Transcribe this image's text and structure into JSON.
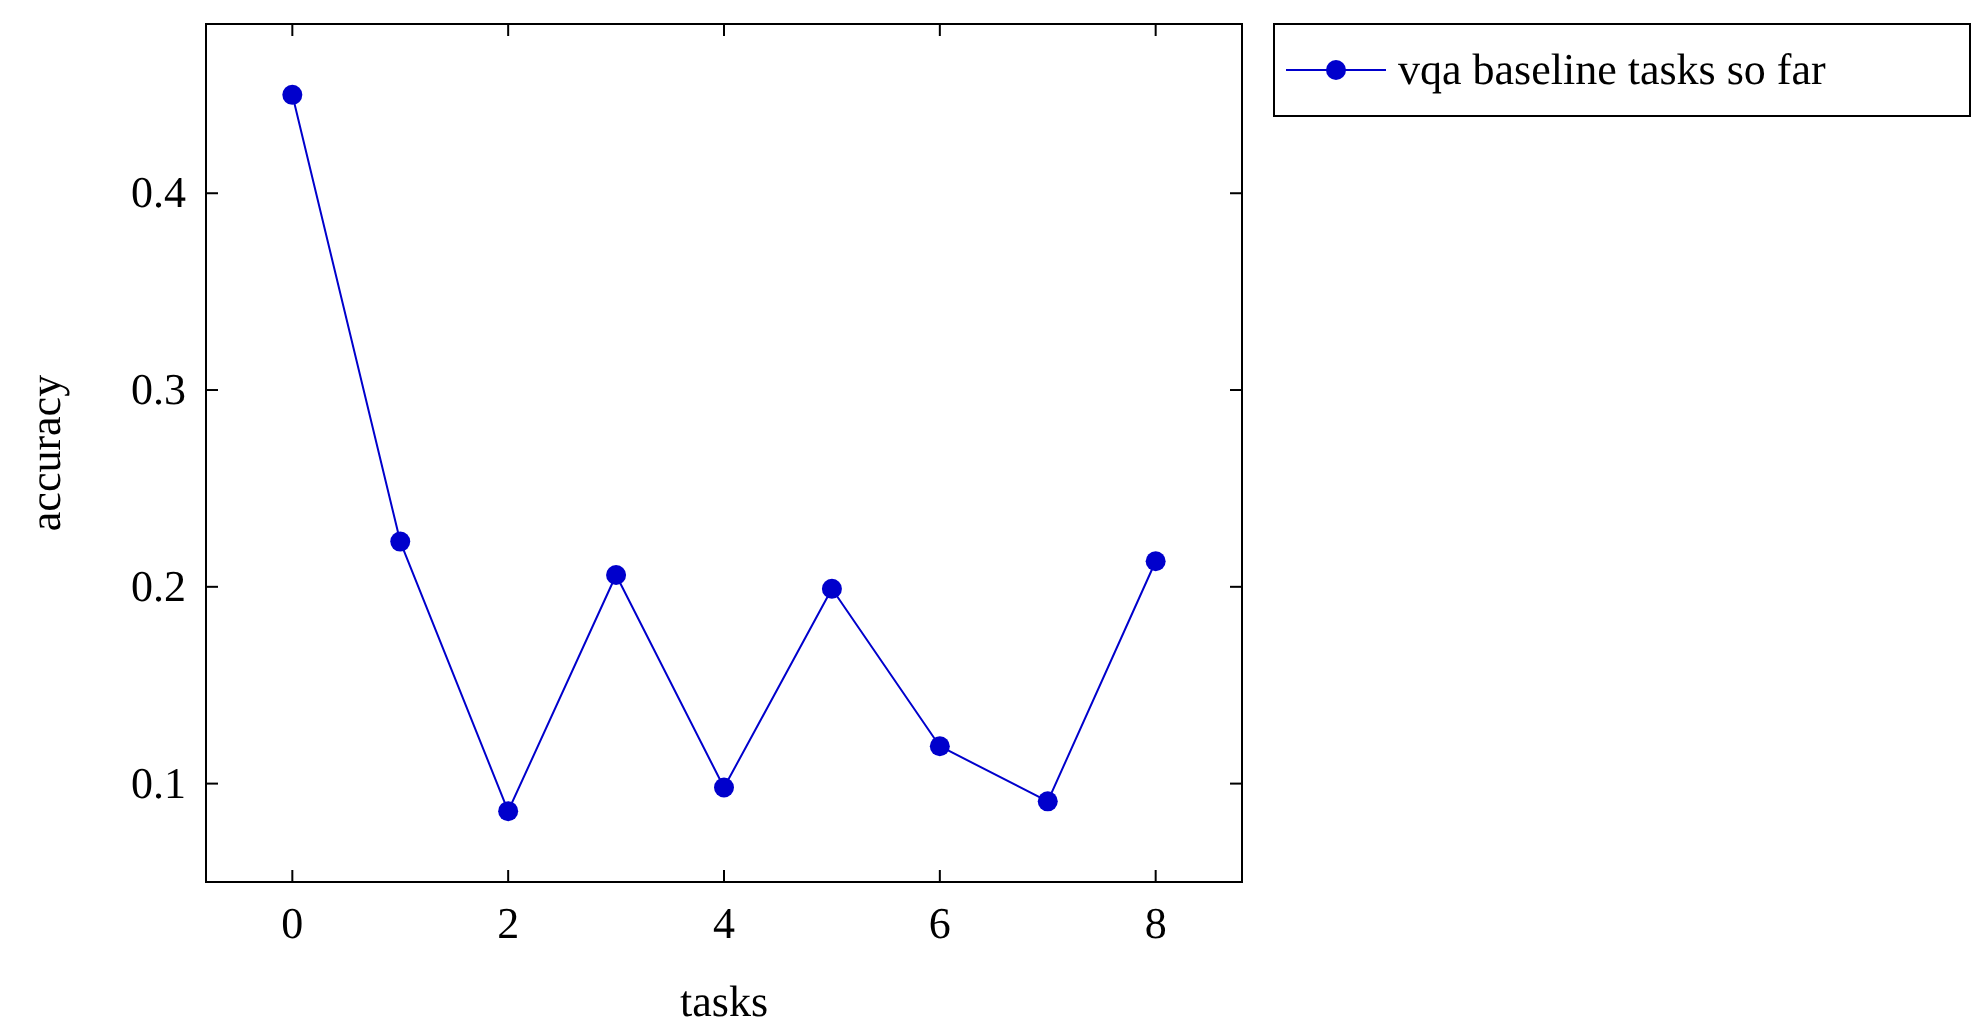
{
  "chart_data": {
    "type": "line",
    "xlabel": "tasks",
    "ylabel": "accuracy",
    "x": [
      0,
      1,
      2,
      3,
      4,
      5,
      6,
      7,
      8
    ],
    "series": [
      {
        "name": "vqa baseline tasks so far",
        "color": "#0000cc",
        "values": [
          0.45,
          0.223,
          0.086,
          0.206,
          0.098,
          0.199,
          0.119,
          0.091,
          0.213
        ]
      }
    ],
    "xlim": [
      -0.8,
      8.8
    ],
    "ylim": [
      0.05,
      0.486
    ],
    "xticks": [
      0,
      2,
      4,
      6,
      8
    ],
    "yticks": [
      0.1,
      0.2,
      0.3,
      0.4
    ],
    "marker": "circle",
    "line_style": "solid",
    "legend": "top right",
    "grid": false
  }
}
